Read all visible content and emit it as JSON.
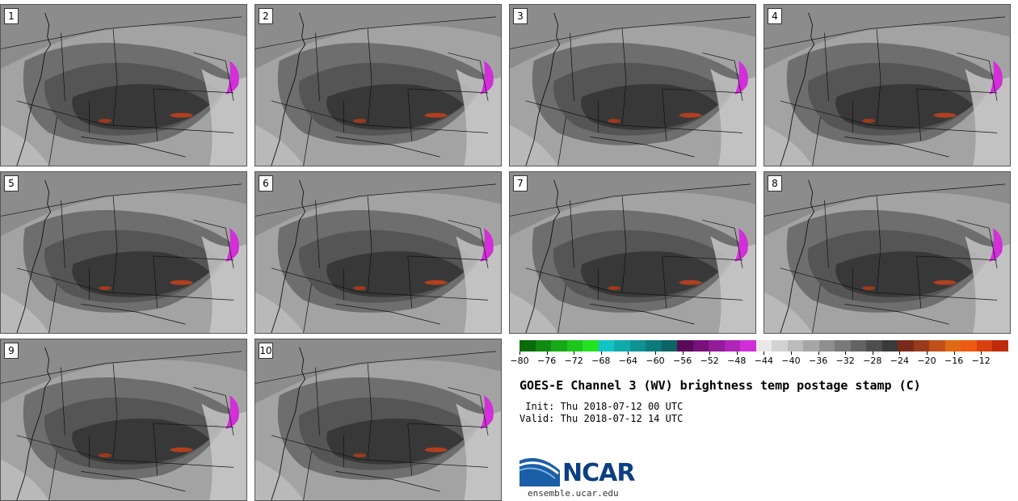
{
  "panels": [
    {
      "label": "1"
    },
    {
      "label": "2"
    },
    {
      "label": "3"
    },
    {
      "label": "4"
    },
    {
      "label": "5"
    },
    {
      "label": "6"
    },
    {
      "label": "7"
    },
    {
      "label": "8"
    },
    {
      "label": "9"
    },
    {
      "label": "10"
    }
  ],
  "colorbar": {
    "colors": [
      "#0b6b0b",
      "#118a11",
      "#17a817",
      "#1dc61d",
      "#22e222",
      "#13c4c4",
      "#10abab",
      "#0e9393",
      "#0d7b7b",
      "#0c6464",
      "#5a0a5a",
      "#77127a",
      "#941b99",
      "#b124b9",
      "#d02fd8",
      "#e8e8e8",
      "#d2d2d2",
      "#bcbcbc",
      "#a6a6a6",
      "#8f8f8f",
      "#797979",
      "#636363",
      "#4e4e4e",
      "#3a3a3a",
      "#7a2a1a",
      "#9a3a1a",
      "#c0501a",
      "#e06a14",
      "#ee5a10",
      "#d84010",
      "#c02a0a"
    ],
    "tick_labels": [
      "−80",
      "−76",
      "−72",
      "−68",
      "−64",
      "−60",
      "−56",
      "−52",
      "−48",
      "−44",
      "−40",
      "−36",
      "−32",
      "−28",
      "−24",
      "−20",
      "−16",
      "−12"
    ]
  },
  "title": "GOES-E Channel 3 (WV) brightness temp postage stamp (C)",
  "init": " Init: Thu 2018-07-12 00 UTC",
  "valid": "Valid: Thu 2018-07-12 14 UTC",
  "logo_text": "NCAR",
  "url": "ensemble.ucar.edu"
}
